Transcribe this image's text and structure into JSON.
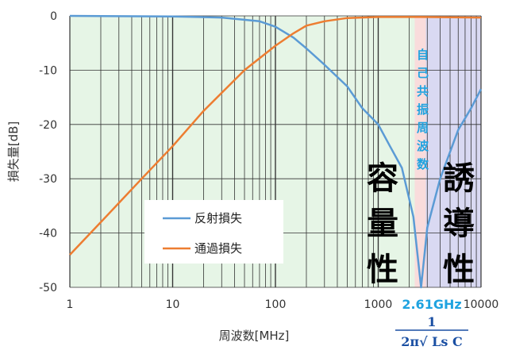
{
  "chart_data": {
    "type": "line",
    "xscale": "log",
    "xlim": [
      1,
      10000
    ],
    "ylim": [
      -50,
      0
    ],
    "xlabel": "周波数[MHz]",
    "ylabel": "損失量[dB]",
    "x_ticks": [
      "1",
      "10",
      "100",
      "1000",
      "10000"
    ],
    "y_ticks": [
      "0",
      "-10",
      "-20",
      "-30",
      "-40",
      "-50"
    ],
    "grid": true,
    "legend_position": "center-left",
    "series": [
      {
        "name": "反射損失",
        "color": "#5b9bd5",
        "points": [
          [
            1,
            0
          ],
          [
            10,
            -0.1
          ],
          [
            30,
            -0.3
          ],
          [
            70,
            -1
          ],
          [
            100,
            -2
          ],
          [
            150,
            -4
          ],
          [
            200,
            -6
          ],
          [
            300,
            -9
          ],
          [
            500,
            -13
          ],
          [
            700,
            -17
          ],
          [
            1000,
            -20
          ],
          [
            1300,
            -24
          ],
          [
            1700,
            -28
          ],
          [
            2200,
            -37
          ],
          [
            2610,
            -50
          ],
          [
            3000,
            -39
          ],
          [
            4000,
            -30
          ],
          [
            6000,
            -21
          ],
          [
            8000,
            -17
          ],
          [
            10000,
            -13.5
          ]
        ]
      },
      {
        "name": "通過損失",
        "color": "#ed7d31",
        "points": [
          [
            1,
            -44
          ],
          [
            2,
            -38
          ],
          [
            5,
            -30
          ],
          [
            10,
            -24
          ],
          [
            20,
            -17.5
          ],
          [
            50,
            -10
          ],
          [
            100,
            -5.5
          ],
          [
            150,
            -3.2
          ],
          [
            200,
            -1.8
          ],
          [
            300,
            -1
          ],
          [
            500,
            -0.4
          ],
          [
            1000,
            -0.2
          ],
          [
            2610,
            -0.2
          ],
          [
            10000,
            -0.3
          ]
        ]
      }
    ],
    "regions": [
      {
        "label": "容量性",
        "from": 1,
        "to": 2610,
        "color": "#e6f5e6"
      },
      {
        "label": "誘導性",
        "from": 2610,
        "to": 10000,
        "color": "#d9d9f2"
      }
    ],
    "annotations": {
      "vertical_label": "自己共振周波数",
      "resonant_freq_label": "2.61GHz",
      "formula_numerator": "1",
      "formula_denominator": "2π√ Ls C"
    }
  }
}
